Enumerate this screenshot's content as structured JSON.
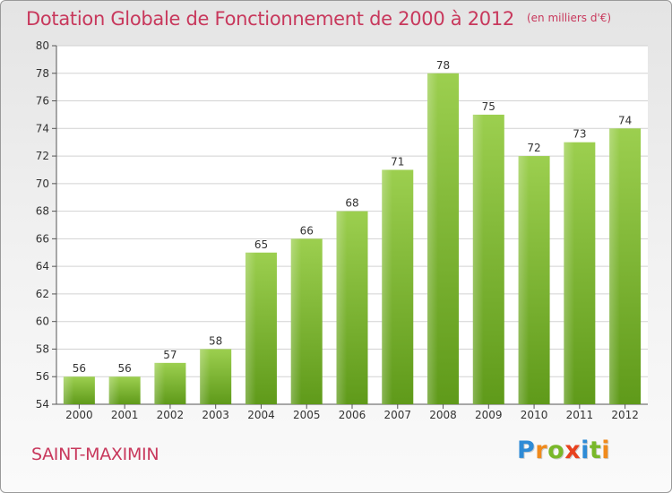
{
  "chart_data": {
    "type": "bar",
    "title": "Dotation Globale de Fonctionnement de 2000 à 2012",
    "unit": "(en milliers d'€)",
    "categories": [
      "2000",
      "2001",
      "2002",
      "2003",
      "2004",
      "2005",
      "2006",
      "2007",
      "2008",
      "2009",
      "2010",
      "2011",
      "2012"
    ],
    "values": [
      56,
      56,
      57,
      58,
      65,
      66,
      68,
      71,
      78,
      75,
      72,
      73,
      74
    ],
    "xlabel": "",
    "ylabel": "",
    "ylim": [
      54,
      80
    ],
    "yticks": [
      54,
      56,
      58,
      60,
      62,
      64,
      66,
      68,
      70,
      72,
      74,
      76,
      78,
      80
    ],
    "grid": true,
    "data_labels": true,
    "bar_color": "#7fb93a"
  },
  "footer": {
    "place": "SAINT-MAXIMIN",
    "logo_letters": [
      "P",
      "r",
      "o",
      "x",
      "i",
      "t",
      "i"
    ],
    "logo_colors": [
      "#2e8bd6",
      "#f08a1c",
      "#79b829",
      "#e8421f",
      "#2e8bd6",
      "#79b829",
      "#f08a1c"
    ]
  }
}
